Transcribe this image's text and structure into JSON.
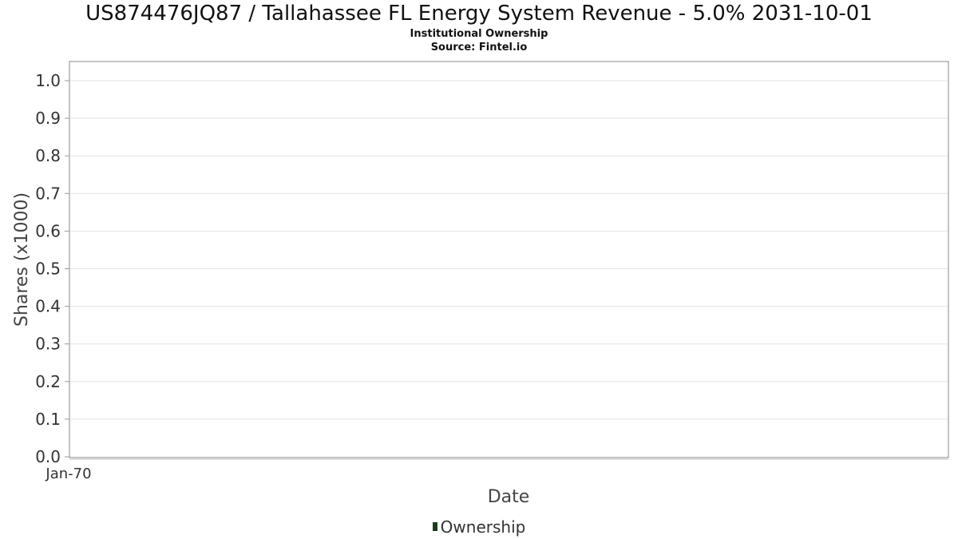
{
  "chart_data": {
    "type": "bar",
    "title": "US874476JQ87 / Tallahassee FL Energy System Revenue - 5.0% 2031-10-01",
    "subtitle": [
      "Institutional Ownership",
      "Source: Fintel.io"
    ],
    "xlabel": "Date",
    "ylabel": "Shares (x1000)",
    "ylim": [
      0,
      1.0
    ],
    "yticks": [
      "0.0",
      "0.1",
      "0.2",
      "0.3",
      "0.4",
      "0.5",
      "0.6",
      "0.7",
      "0.8",
      "0.9",
      "1.0"
    ],
    "xticks": [
      "Jan-70"
    ],
    "grid": true,
    "legend_position": "bottom-center",
    "series": [
      {
        "name": "Ownership",
        "color": "#1a3d1a",
        "values": []
      }
    ]
  }
}
